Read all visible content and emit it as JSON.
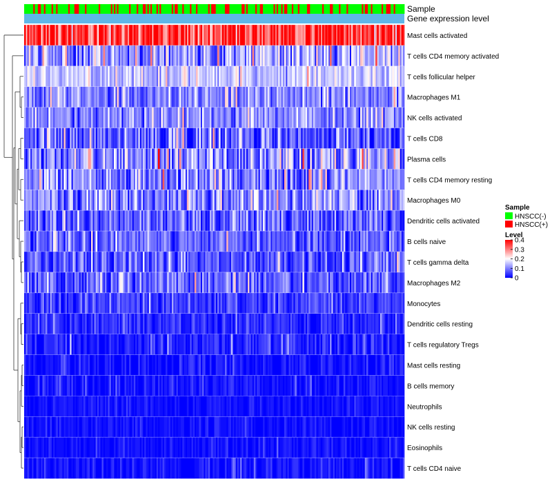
{
  "chart_data": {
    "type": "heatmap",
    "title": "",
    "annotation_tracks": [
      "Sample",
      "Gene expression level"
    ],
    "rows": [
      {
        "label": "Mast cells activated",
        "mean": 0.33,
        "spread": 0.1
      },
      {
        "label": "T cells CD4 memory activated",
        "mean": 0.12,
        "spread": 0.1
      },
      {
        "label": "T cells follicular helper",
        "mean": 0.15,
        "spread": 0.05
      },
      {
        "label": "Macrophages M1",
        "mean": 0.1,
        "spread": 0.06
      },
      {
        "label": "NK cells activated",
        "mean": 0.1,
        "spread": 0.06
      },
      {
        "label": "T cells CD8",
        "mean": 0.07,
        "spread": 0.08
      },
      {
        "label": "Plasma cells",
        "mean": 0.11,
        "spread": 0.1
      },
      {
        "label": "T cells CD4 memory resting",
        "mean": 0.1,
        "spread": 0.08
      },
      {
        "label": "Macrophages M0",
        "mean": 0.1,
        "spread": 0.08
      },
      {
        "label": "Dendritic cells activated",
        "mean": 0.07,
        "spread": 0.07
      },
      {
        "label": "B cells naive",
        "mean": 0.07,
        "spread": 0.06
      },
      {
        "label": "T cells gamma delta",
        "mean": 0.06,
        "spread": 0.06
      },
      {
        "label": "Macrophages M2",
        "mean": 0.07,
        "spread": 0.06
      },
      {
        "label": "Monocytes",
        "mean": 0.04,
        "spread": 0.05
      },
      {
        "label": "Dendritic cells resting",
        "mean": 0.03,
        "spread": 0.04
      },
      {
        "label": "T cells regulatory  Tregs",
        "mean": 0.02,
        "spread": 0.04
      },
      {
        "label": "Mast cells resting",
        "mean": 0.01,
        "spread": 0.03
      },
      {
        "label": "B cells memory",
        "mean": 0.01,
        "spread": 0.03
      },
      {
        "label": "Neutrophils",
        "mean": 0.01,
        "spread": 0.02
      },
      {
        "label": "NK cells resting",
        "mean": 0.01,
        "spread": 0.02
      },
      {
        "label": "Eosinophils",
        "mean": 0.01,
        "spread": 0.02
      },
      {
        "label": "T cells CD4 naive",
        "mean": 0.01,
        "spread": 0.03
      }
    ],
    "column_count": 250,
    "hnscc_positive_fraction": 0.3,
    "legend": {
      "sample_title": "Sample",
      "sample_entries": [
        {
          "label": "HNSCC(-)",
          "color": "#00ff00"
        },
        {
          "label": "HNSCC(+)",
          "color": "#ff0000"
        }
      ],
      "level_title": "Level",
      "level_ticks": [
        "0",
        "0.1",
        "0.2",
        "0.3",
        "0.4"
      ],
      "level_range": [
        0,
        0.4
      ],
      "gradient_colors": [
        "#0000ff",
        "#ffffff",
        "#ff0000"
      ]
    },
    "expression_level_color": "#5fb6e8"
  }
}
